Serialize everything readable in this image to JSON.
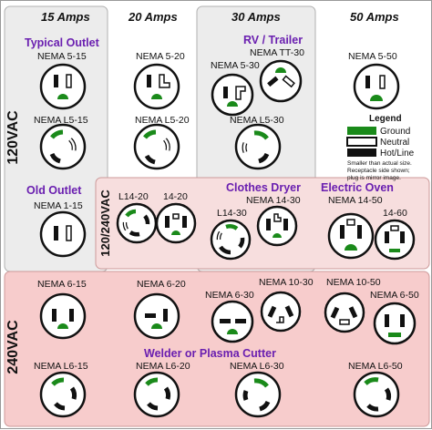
{
  "columns": [
    "15 Amps",
    "20 Amps",
    "30 Amps",
    "50 Amps"
  ],
  "voltages": {
    "v120": "120VAC",
    "v120_240": "120/240VAC",
    "v240": "240VAC"
  },
  "groups": {
    "typical_outlet": "Typical Outlet",
    "rv_trailer": "RV / Trailer",
    "old_outlet": "Old Outlet",
    "clothes_dryer": "Clothes Dryer",
    "electric_oven": "Electric Oven",
    "welder": "Welder or Plasma Cutter"
  },
  "labels": {
    "n5_15": "NEMA 5-15",
    "n5_20": "NEMA 5-20",
    "n5_30": "NEMA 5-30",
    "ntt_30": "NEMA TT-30",
    "n5_50": "NEMA 5-50",
    "nl5_15": "NEMA L5-15",
    "nl5_20": "NEMA L5-20",
    "nl5_30": "NEMA L5-30",
    "n1_15": "NEMA 1-15",
    "l14_20": "L14-20",
    "n14_20": "14-20",
    "n14_30": "NEMA 14-30",
    "l14_30": "L14-30",
    "n14_50": "NEMA 14-50",
    "n14_60": "14-60",
    "n6_15": "NEMA 6-15",
    "n6_20": "NEMA 6-20",
    "n10_30": "NEMA 10-30",
    "n6_30": "NEMA 6-30",
    "n10_50": "NEMA 10-50",
    "n6_50": "NEMA 6-50",
    "nl6_15": "NEMA L6-15",
    "nl6_20": "NEMA L6-20",
    "nl6_30": "NEMA L6-30",
    "nl6_50": "NEMA L6-50"
  },
  "legend": {
    "title": "Legend",
    "ground": "Ground",
    "neutral": "Neutral",
    "hot": "Hot/Line",
    "note_line1": "Smaller than actual size.",
    "note_line2": "Receptacle side shown;",
    "note_line3": "plug is mirror image."
  },
  "colors": {
    "ground": "#1a8a1a",
    "neutral": "#ffffff",
    "hot": "#111111",
    "title": "#6a1fb0",
    "region_120": "#ececec",
    "region_240": "#f7cccc",
    "region_120_240": "#f7dede"
  }
}
